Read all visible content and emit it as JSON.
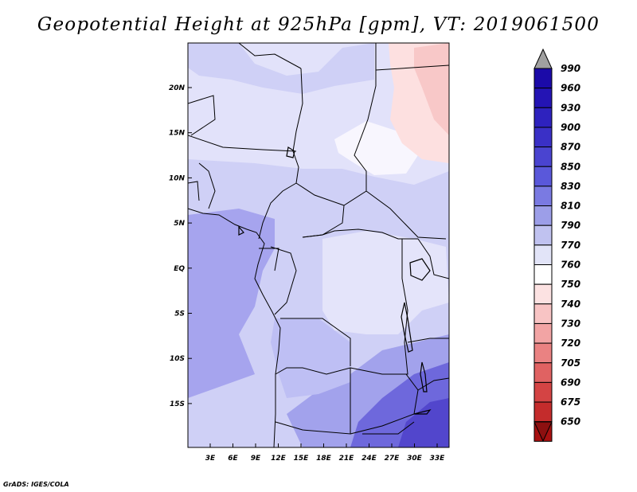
{
  "title": "Geopotential Height at 925hPa [gpm], VT: 2019061500",
  "credit": "GrADS: IGES/COLA",
  "map": {
    "lon_ticks": [
      "3E",
      "6E",
      "9E",
      "12E",
      "15E",
      "18E",
      "21E",
      "24E",
      "27E",
      "30E",
      "33E"
    ],
    "lat_ticks": [
      "20N",
      "15N",
      "10N",
      "5N",
      "EQ",
      "5S",
      "10S",
      "15S"
    ],
    "base_color": "#cfd0f6"
  },
  "colorbar": {
    "labels": [
      "990",
      "960",
      "930",
      "900",
      "870",
      "850",
      "830",
      "810",
      "790",
      "770",
      "760",
      "750",
      "740",
      "730",
      "720",
      "705",
      "690",
      "675",
      "650"
    ],
    "colors": [
      "#1b0aa8",
      "#2414b4",
      "#2e22be",
      "#3a30c6",
      "#4a44d0",
      "#5a58da",
      "#7a7ae2",
      "#9c9ee8",
      "#c0c2f0",
      "#e2e4f8",
      "#ffffff",
      "#fce2e2",
      "#f8c4c4",
      "#f2a4a4",
      "#ea8282",
      "#e06262",
      "#d44444",
      "#c42c2c",
      "#a81010"
    ],
    "top_arrow_color": "#a0a0a0",
    "bottom_arrow_color": "#8c1010"
  }
}
